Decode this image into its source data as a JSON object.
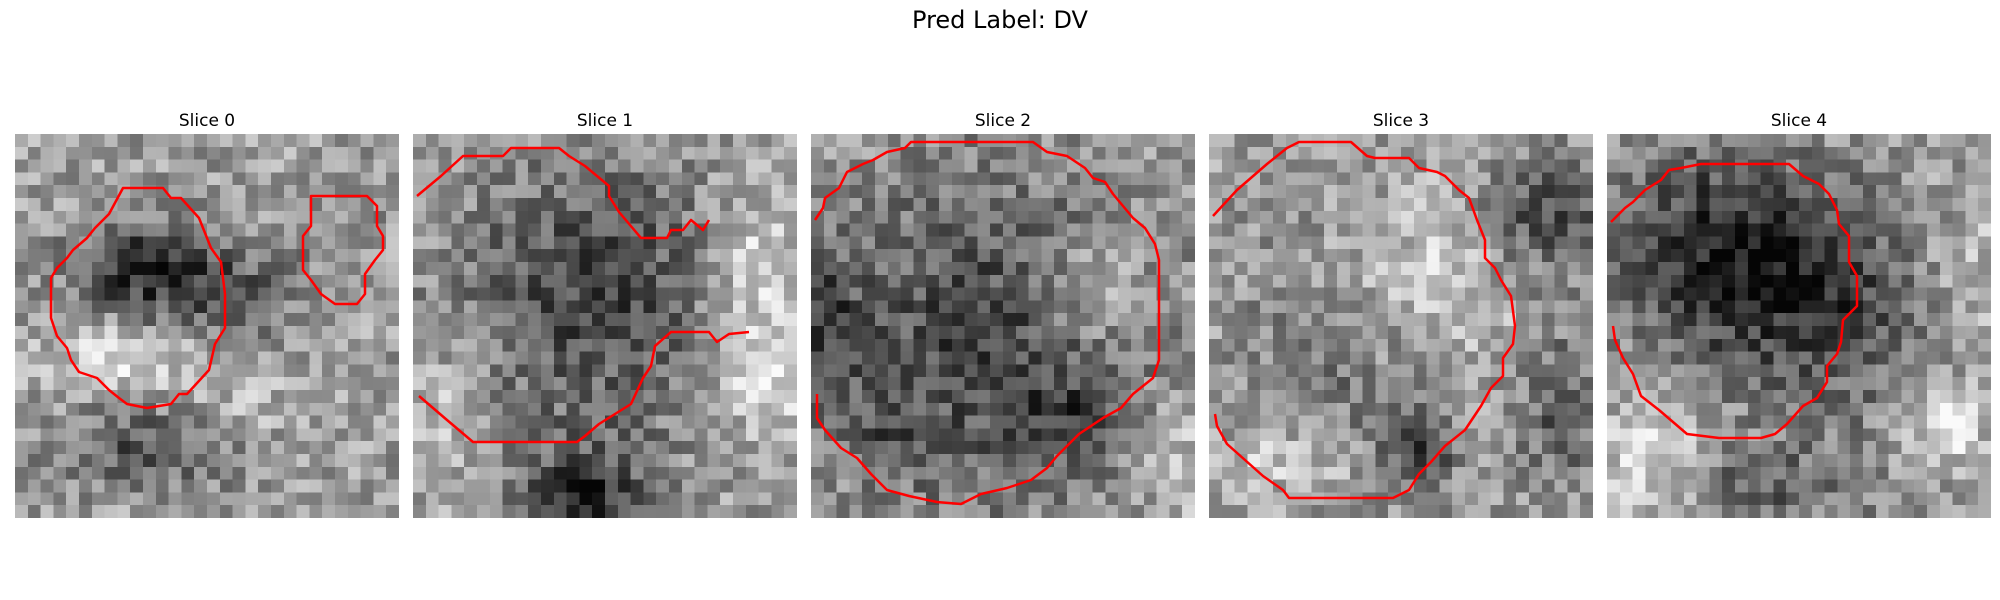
{
  "figure": {
    "title": "Pred Label: DV"
  },
  "slices": [
    {
      "label": "Slice 0"
    },
    {
      "label": "Slice 1"
    },
    {
      "label": "Slice 2"
    },
    {
      "label": "Slice 3"
    },
    {
      "label": "Slice 4"
    }
  ],
  "colors": {
    "contour": "#ff0000",
    "colormap": "gray"
  }
}
